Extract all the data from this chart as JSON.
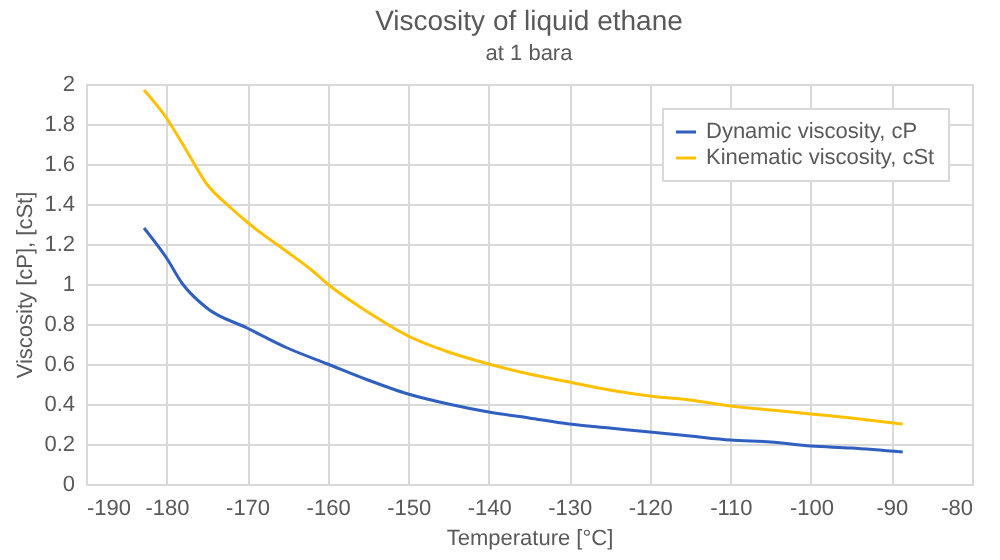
{
  "chart_data": {
    "type": "line",
    "title": "Viscosity of liquid ethane",
    "subtitle": "at 1 bara",
    "xlabel": "Temperature  [°C]",
    "ylabel": "Viscosity [cP], [cSt]",
    "xlim": [
      -190,
      -80
    ],
    "xticks": [
      -190,
      -180,
      -170,
      -160,
      -150,
      -140,
      -130,
      -120,
      -110,
      -100,
      -90,
      -80
    ],
    "ylim": [
      0,
      2
    ],
    "yticks": [
      0,
      0.2,
      0.4,
      0.6,
      0.8,
      1,
      1.2,
      1.4,
      1.6,
      1.8,
      2
    ],
    "grid": true,
    "legend": "top right",
    "series": [
      {
        "name": "Dynamic viscosity, cP",
        "color": "#2f5fbf",
        "x": [
          -182.8,
          -180,
          -178,
          -175,
          -170,
          -165,
          -160,
          -155,
          -150,
          -145,
          -140,
          -135,
          -130,
          -125,
          -120,
          -115,
          -110,
          -105,
          -100,
          -95,
          -88.6
        ],
        "values": [
          1.28,
          1.13,
          1.0,
          0.88,
          0.78,
          0.68,
          0.6,
          0.52,
          0.45,
          0.4,
          0.36,
          0.33,
          0.3,
          0.28,
          0.26,
          0.24,
          0.22,
          0.21,
          0.19,
          0.18,
          0.16
        ]
      },
      {
        "name": "Kinematic viscosity, cSt",
        "color": "#ffc000",
        "x": [
          -182.8,
          -180,
          -178,
          -175,
          -172,
          -170,
          -165,
          -162,
          -160,
          -155,
          -150,
          -145,
          -140,
          -135,
          -130,
          -125,
          -120,
          -115,
          -110,
          -105,
          -100,
          -95,
          -88.6
        ],
        "values": [
          1.97,
          1.83,
          1.7,
          1.5,
          1.38,
          1.31,
          1.16,
          1.07,
          1.0,
          0.86,
          0.74,
          0.66,
          0.6,
          0.55,
          0.51,
          0.47,
          0.44,
          0.42,
          0.39,
          0.37,
          0.35,
          0.33,
          0.3
        ]
      }
    ]
  }
}
